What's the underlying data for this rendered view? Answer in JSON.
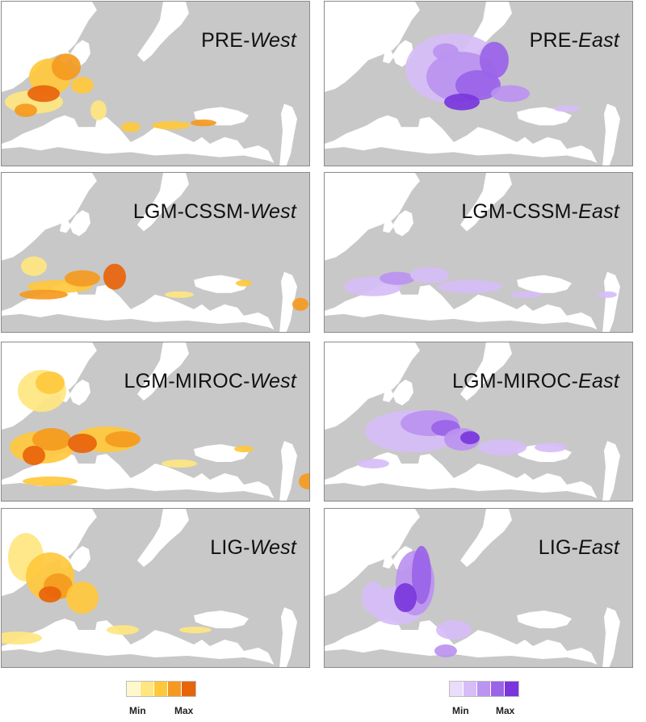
{
  "panels": [
    {
      "prefix": "PRE-",
      "suffix": "West",
      "palette": "west",
      "range": "pre_w"
    },
    {
      "prefix": "PRE-",
      "suffix": "East",
      "palette": "east",
      "range": "pre_e"
    },
    {
      "prefix": "LGM-CSSM-",
      "suffix": "West",
      "palette": "west",
      "range": "cssm_w"
    },
    {
      "prefix": "LGM-CSSM-",
      "suffix": "East",
      "palette": "east",
      "range": "cssm_e"
    },
    {
      "prefix": "LGM-MIROC-",
      "suffix": "West",
      "palette": "west",
      "range": "miroc_w"
    },
    {
      "prefix": "LGM-MIROC-",
      "suffix": "East",
      "palette": "east",
      "range": "miroc_e"
    },
    {
      "prefix": "LIG-",
      "suffix": "West",
      "palette": "west",
      "range": "lig_w"
    },
    {
      "prefix": "LIG-",
      "suffix": "East",
      "palette": "east",
      "range": "lig_e"
    }
  ],
  "colors": {
    "land": "#c8c8c8",
    "sea": "#ffffff",
    "west": [
      "#fff8cc",
      "#ffe680",
      "#ffc83c",
      "#f59a1e",
      "#e8640a"
    ],
    "east": [
      "#e9ddfb",
      "#d6bdf6",
      "#bb93f0",
      "#9a63e8",
      "#7a36dc"
    ]
  },
  "legends": {
    "west": {
      "min": "Min",
      "max": "Max"
    },
    "east": {
      "min": "Min",
      "max": "Max"
    }
  }
}
